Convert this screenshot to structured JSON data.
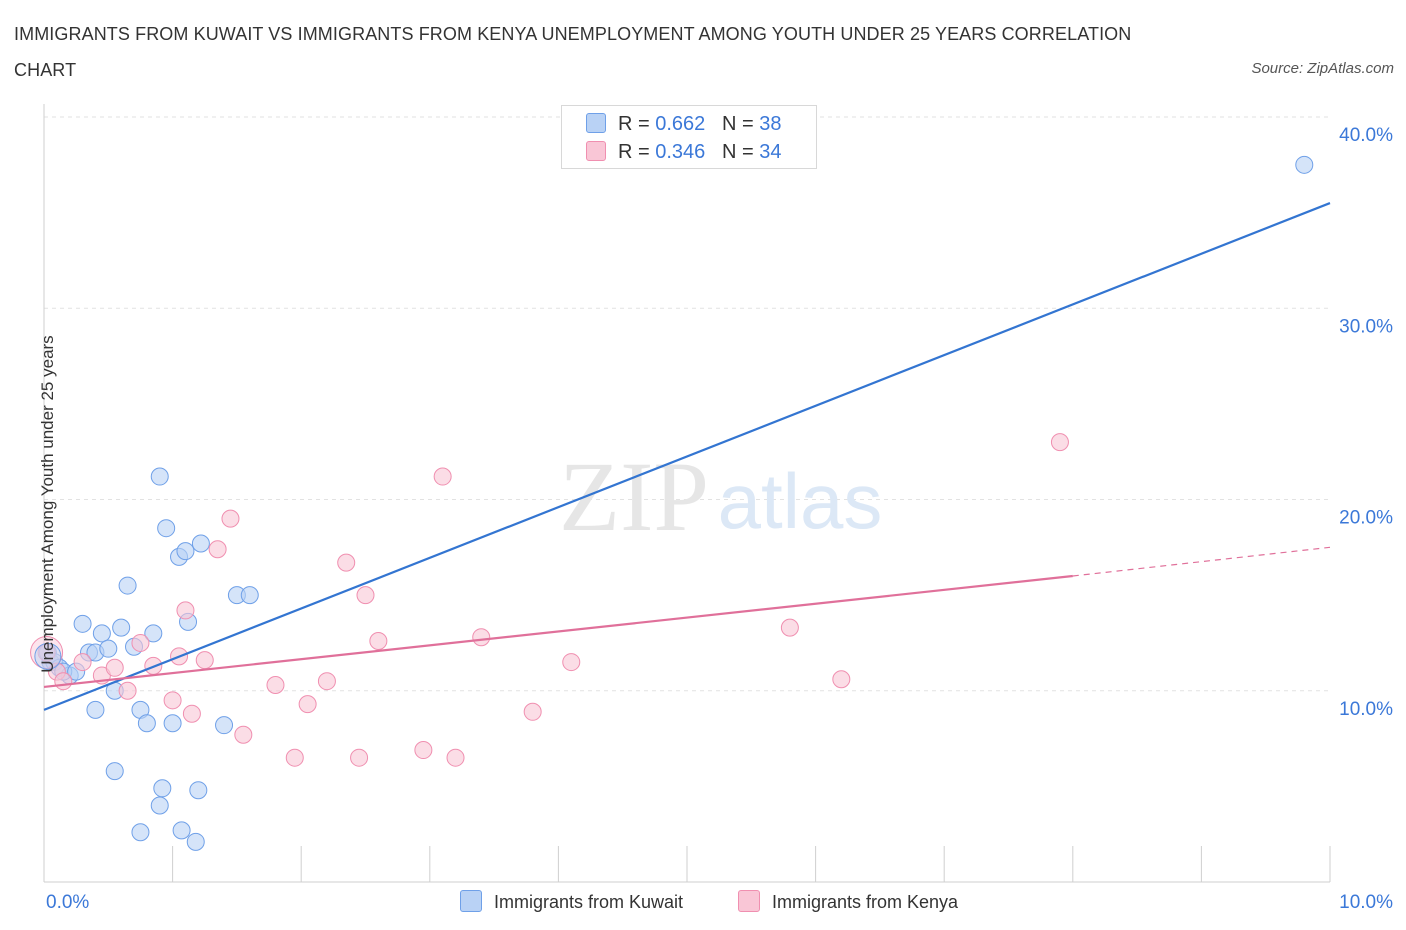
{
  "chart_data": {
    "type": "scatter",
    "title": "IMMIGRANTS FROM KUWAIT VS IMMIGRANTS FROM KENYA UNEMPLOYMENT AMONG YOUTH UNDER 25 YEARS CORRELATION CHART",
    "source": "Source: ZipAtlas.com",
    "xlabel": "",
    "ylabel": "Unemployment Among Youth under 25 years",
    "xlim": [
      0,
      10
    ],
    "ylim": [
      0,
      40
    ],
    "x_tick_labels": {
      "left": "0.0%",
      "right": "10.0%"
    },
    "y_ticks": [
      10,
      20,
      30,
      40
    ],
    "y_tick_labels": [
      "10.0%",
      "20.0%",
      "30.0%",
      "40.0%"
    ],
    "watermark": {
      "zip": "ZIP",
      "atlas": "atlas"
    },
    "legend": {
      "rows": [
        {
          "r_label": "R =",
          "r_value": "0.662",
          "n_label": "N =",
          "n_value": "38"
        },
        {
          "r_label": "R =",
          "r_value": "0.346",
          "n_label": "N =",
          "n_value": "34"
        }
      ]
    },
    "series": [
      {
        "name": "Immigrants from Kuwait",
        "color": "#6fa0e8",
        "fill": "#b9d2f5",
        "line_color": "#3375d1",
        "trend": {
          "x0": 0,
          "y0": 9.0,
          "x1": 10,
          "y1": 35.5
        },
        "points": [
          [
            0.03,
            12.0
          ],
          [
            0.05,
            11.5
          ],
          [
            0.08,
            11.5
          ],
          [
            0.12,
            11.2
          ],
          [
            0.2,
            10.8
          ],
          [
            0.3,
            13.5
          ],
          [
            0.35,
            12.0
          ],
          [
            0.4,
            12.0
          ],
          [
            0.45,
            13.0
          ],
          [
            0.5,
            12.2
          ],
          [
            0.55,
            10.0
          ],
          [
            0.6,
            13.3
          ],
          [
            0.65,
            15.5
          ],
          [
            0.7,
            12.3
          ],
          [
            0.75,
            9.0
          ],
          [
            0.8,
            8.3
          ],
          [
            0.85,
            13.0
          ],
          [
            0.9,
            21.2
          ],
          [
            0.95,
            18.5
          ],
          [
            1.0,
            8.3
          ],
          [
            1.05,
            17.0
          ],
          [
            1.1,
            17.3
          ],
          [
            1.12,
            13.6
          ],
          [
            1.2,
            4.8
          ],
          [
            1.22,
            17.7
          ],
          [
            1.4,
            8.2
          ],
          [
            1.5,
            15.0
          ],
          [
            1.6,
            15.0
          ],
          [
            0.4,
            9.0
          ],
          [
            0.55,
            5.8
          ],
          [
            0.75,
            2.6
          ],
          [
            0.92,
            4.9
          ],
          [
            0.9,
            4.0
          ],
          [
            1.18,
            2.1
          ],
          [
            1.07,
            2.7
          ],
          [
            9.8,
            37.5
          ],
          [
            0.15,
            11.0
          ],
          [
            0.25,
            11.0
          ]
        ]
      },
      {
        "name": "Immigrants from Kenya",
        "color": "#f08fb0",
        "fill": "#f9c6d6",
        "line_color": "#e0709a",
        "trend": {
          "x0": 0,
          "y0": 10.2,
          "x1": 8.0,
          "y1": 16.0,
          "dash_x1": 10,
          "dash_y1": 17.5
        },
        "points": [
          [
            0.02,
            12.0
          ],
          [
            0.1,
            11.0
          ],
          [
            0.15,
            10.5
          ],
          [
            0.3,
            11.5
          ],
          [
            0.45,
            10.8
          ],
          [
            0.55,
            11.2
          ],
          [
            0.65,
            10.0
          ],
          [
            0.75,
            12.5
          ],
          [
            0.85,
            11.3
          ],
          [
            1.0,
            9.5
          ],
          [
            1.05,
            11.8
          ],
          [
            1.1,
            14.2
          ],
          [
            1.15,
            8.8
          ],
          [
            1.25,
            11.6
          ],
          [
            1.35,
            17.4
          ],
          [
            1.45,
            19.0
          ],
          [
            1.55,
            7.7
          ],
          [
            1.8,
            10.3
          ],
          [
            1.95,
            6.5
          ],
          [
            2.05,
            9.3
          ],
          [
            2.2,
            10.5
          ],
          [
            2.35,
            16.7
          ],
          [
            2.45,
            6.5
          ],
          [
            2.5,
            15.0
          ],
          [
            2.6,
            12.6
          ],
          [
            2.95,
            6.9
          ],
          [
            3.1,
            21.2
          ],
          [
            3.2,
            6.5
          ],
          [
            3.4,
            12.8
          ],
          [
            3.8,
            8.9
          ],
          [
            4.1,
            11.5
          ],
          [
            5.8,
            13.3
          ],
          [
            6.2,
            10.6
          ],
          [
            7.9,
            23.0
          ]
        ]
      }
    ]
  }
}
